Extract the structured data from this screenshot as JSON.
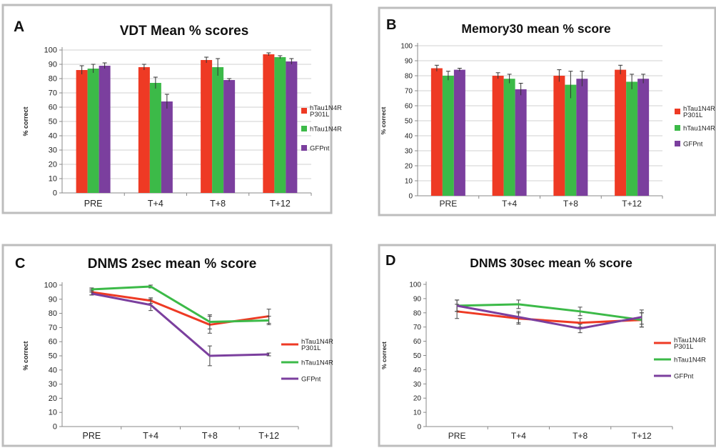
{
  "colors": {
    "series1": "#ee3a24",
    "series2": "#3cba48",
    "series3": "#7b3f9e",
    "border": "#bdbdbd",
    "grid": "#d0d0d0"
  },
  "chart_data": [
    {
      "panel": "A",
      "type": "bar",
      "title": "VDT Mean % scores",
      "ylabel": "% correct",
      "ylim": [
        0,
        100
      ],
      "yticks": [
        "0",
        "10",
        "20",
        "30",
        "40",
        "50",
        "60",
        "70",
        "80",
        "90",
        "100"
      ],
      "categories": [
        "PRE",
        "T+4",
        "T+8",
        "T+12"
      ],
      "legend_position": "right",
      "grid": true,
      "series": [
        {
          "name_lines": [
            "hTau1N4R",
            "P301L"
          ],
          "values": [
            86,
            88,
            93,
            97
          ],
          "errors": [
            3,
            2,
            2,
            1
          ]
        },
        {
          "name_lines": [
            "hTau1N4R"
          ],
          "values": [
            87,
            77,
            88,
            95
          ],
          "errors": [
            3,
            4,
            6,
            1
          ]
        },
        {
          "name_lines": [
            "GFPnt"
          ],
          "values": [
            89,
            64,
            79,
            92
          ],
          "errors": [
            2,
            5,
            1,
            2
          ]
        }
      ]
    },
    {
      "panel": "B",
      "type": "bar",
      "title": "Memory30 mean % score",
      "ylabel": "% correct",
      "ylim": [
        0,
        100
      ],
      "yticks": [
        "0",
        "10",
        "20",
        "30",
        "40",
        "50",
        "60",
        "70",
        "80",
        "90",
        "100"
      ],
      "categories": [
        "PRE",
        "T+4",
        "T+8",
        "T+12"
      ],
      "legend_position": "right",
      "grid": true,
      "series": [
        {
          "name_lines": [
            "hTau1N4R",
            "P301L"
          ],
          "values": [
            85,
            80,
            80,
            84
          ],
          "errors": [
            2,
            2,
            4,
            3
          ]
        },
        {
          "name_lines": [
            "hTau1N4R"
          ],
          "values": [
            80,
            78,
            74,
            76
          ],
          "errors": [
            3,
            3,
            9,
            5
          ]
        },
        {
          "name_lines": [
            "GFPnt"
          ],
          "values": [
            84,
            71,
            78,
            78
          ],
          "errors": [
            1,
            4,
            5,
            3
          ]
        }
      ]
    },
    {
      "panel": "C",
      "type": "line",
      "title": "DNMS 2sec mean % score",
      "ylabel": "% correct",
      "ylim": [
        0,
        100
      ],
      "yticks": [
        "0",
        "10",
        "20",
        "30",
        "40",
        "50",
        "60",
        "70",
        "80",
        "90",
        "100"
      ],
      "categories": [
        "PRE",
        "T+4",
        "T+8",
        "T+12"
      ],
      "legend_position": "right",
      "grid": false,
      "series": [
        {
          "name_lines": [
            "hTau1N4R",
            "P301L"
          ],
          "values": [
            95,
            89,
            72,
            78
          ],
          "errors": [
            2,
            2,
            6,
            5
          ]
        },
        {
          "name_lines": [
            "hTau1N4R"
          ],
          "values": [
            97,
            99,
            74,
            75
          ],
          "errors": [
            1,
            1,
            5,
            3
          ]
        },
        {
          "name_lines": [
            "GFPnt"
          ],
          "values": [
            94,
            86,
            50,
            51
          ],
          "errors": [
            1,
            4,
            7,
            1
          ]
        }
      ]
    },
    {
      "panel": "D",
      "type": "line",
      "title": "DNMS 30sec mean % score",
      "ylabel": "% correct",
      "ylim": [
        0,
        100
      ],
      "yticks": [
        "0",
        "10",
        "20",
        "30",
        "40",
        "50",
        "60",
        "70",
        "80",
        "90",
        "100"
      ],
      "categories": [
        "PRE",
        "T+4",
        "T+8",
        "T+12"
      ],
      "legend_position": "right",
      "grid": false,
      "series": [
        {
          "name_lines": [
            "hTau1N4R",
            "P301L"
          ],
          "values": [
            81,
            76,
            73,
            75
          ],
          "errors": [
            5,
            4,
            3,
            5
          ]
        },
        {
          "name_lines": [
            "hTau1N4R"
          ],
          "values": [
            85,
            86,
            81,
            75
          ],
          "errors": [
            4,
            3,
            3,
            5
          ]
        },
        {
          "name_lines": [
            "GFPnt"
          ],
          "values": [
            85,
            77,
            69,
            77
          ],
          "errors": [
            4,
            4,
            3,
            5
          ]
        }
      ]
    }
  ]
}
